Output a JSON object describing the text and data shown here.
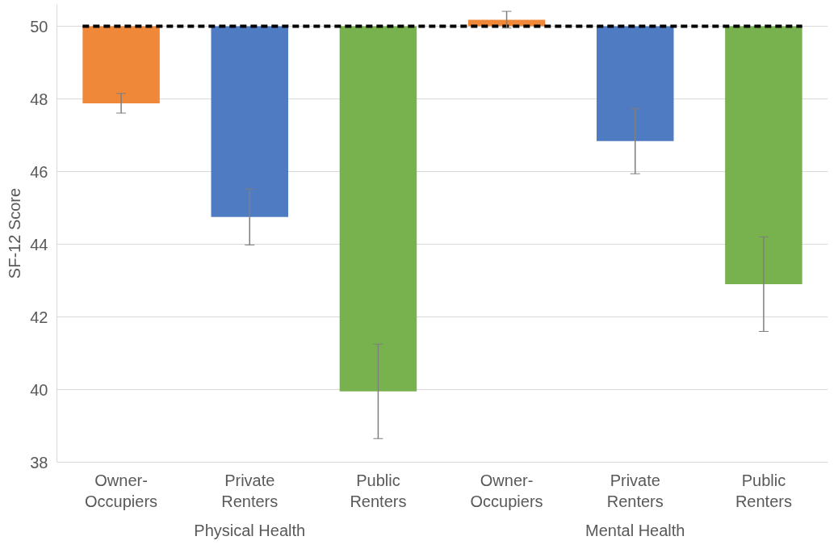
{
  "chart_data": {
    "type": "bar",
    "ylabel": "SF-12 Score",
    "categories": [
      "Owner-Occupiers",
      "Private Renters",
      "Public Renters",
      "Owner-Occupiers",
      "Private Renters",
      "Public Renters"
    ],
    "base": [
      50,
      50,
      50,
      50,
      50,
      50
    ],
    "values": [
      -2.12,
      -5.25,
      -10.05,
      0.18,
      -3.16,
      -7.1
    ],
    "errors": [
      0.27,
      0.77,
      1.3,
      0.23,
      0.9,
      1.3
    ],
    "colors": [
      "#f0883a",
      "#4e7bc2",
      "#78b24e",
      "#f0883a",
      "#4e7bc2",
      "#78b24e"
    ],
    "ylim": [
      38,
      50.6
    ],
    "yticks": [
      38,
      40,
      42,
      44,
      46,
      48,
      50
    ],
    "grid": "y",
    "ref_lines": [
      {
        "axis": "y",
        "value": 50,
        "color": "#000000",
        "line_style": "dashed"
      }
    ],
    "annotations": [
      "Physical Health",
      "Mental Health"
    ]
  }
}
